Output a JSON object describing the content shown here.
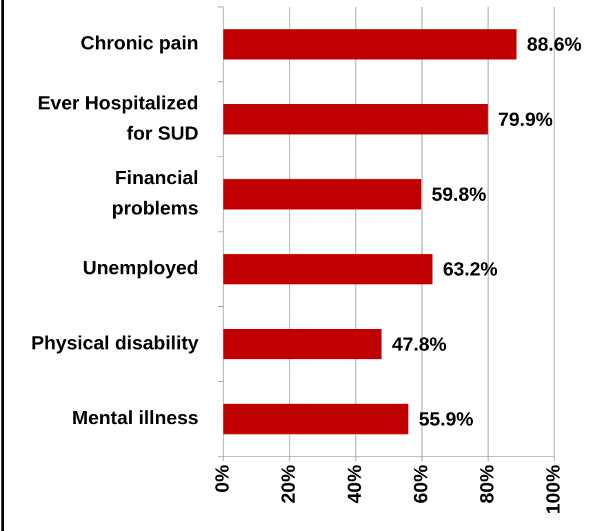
{
  "chart_data": {
    "type": "barh",
    "categories": [
      [
        "Chronic pain"
      ],
      [
        "Ever Hospitalized",
        "for SUD"
      ],
      [
        "Financial",
        "problems"
      ],
      [
        "Unemployed"
      ],
      [
        "Physical disability"
      ],
      [
        "Mental illness"
      ]
    ],
    "values": [
      88.6,
      79.9,
      59.8,
      63.2,
      47.8,
      55.9
    ],
    "value_labels": [
      "88.6%",
      "79.9%",
      "59.8%",
      "63.2%",
      "47.8%",
      "55.9%"
    ],
    "color": "#c00000",
    "xlim": [
      0,
      100
    ],
    "xticks": [
      {
        "value": 0,
        "label": "0%"
      },
      {
        "value": 20,
        "label": "20%"
      },
      {
        "value": 40,
        "label": "40%"
      },
      {
        "value": 60,
        "label": "60%"
      },
      {
        "value": 80,
        "label": "80%"
      },
      {
        "value": 100,
        "label": "100%"
      }
    ],
    "grid": true
  }
}
